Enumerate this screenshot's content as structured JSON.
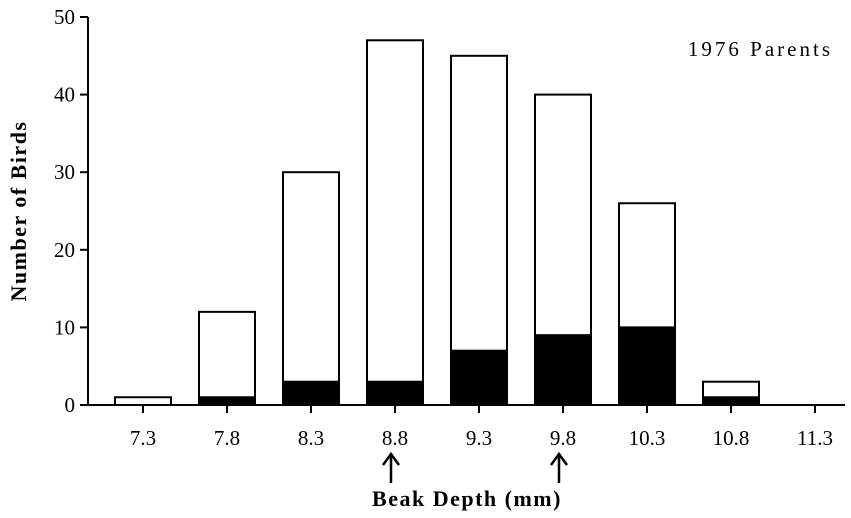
{
  "chart_data": {
    "type": "bar",
    "stacked": true,
    "categories": [
      "7.3",
      "7.8",
      "8.3",
      "8.8",
      "9.3",
      "9.8",
      "10.3",
      "10.8",
      "11.3"
    ],
    "series": [
      {
        "values": [
          0,
          1,
          3,
          3,
          7,
          9,
          10,
          1,
          0
        ],
        "color": "#000000"
      },
      {
        "values": [
          1,
          11,
          27,
          44,
          38,
          31,
          16,
          2,
          0
        ],
        "color": "#ffffff"
      }
    ],
    "totals": [
      1,
      12,
      30,
      47,
      45,
      40,
      26,
      3,
      0
    ],
    "ylim": [
      0,
      50
    ],
    "yticks": [
      "0",
      "10",
      "20",
      "30",
      "40",
      "50"
    ],
    "xlabel": "Beak Depth (mm)",
    "ylabel": "Number of Birds",
    "annotation": "1976 Parents",
    "arrow_markers": [
      "8.8",
      "9.8"
    ],
    "grid": false
  }
}
